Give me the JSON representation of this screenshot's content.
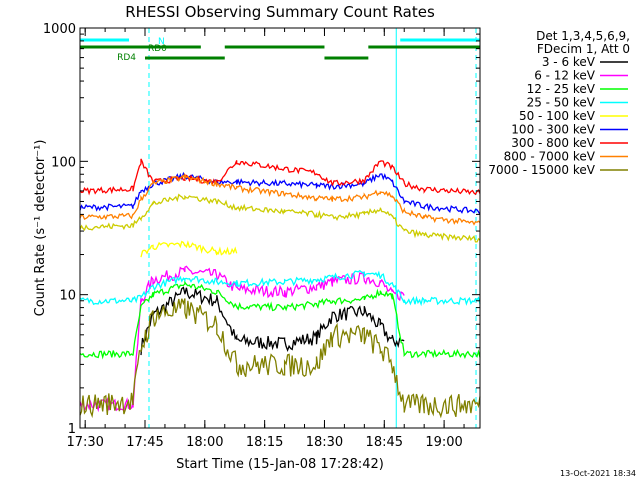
{
  "chart_data": {
    "type": "line",
    "title": "RHESSI Observing Summary Count Rates",
    "xlabel": "Start Time (15-Jan-08 17:28:42)",
    "ylabel": "Count Rate (s⁻¹ detector⁻¹)",
    "xlim": [
      "17:28:42",
      "19:09:00"
    ],
    "ylim": [
      1,
      1000
    ],
    "y_scale": "log",
    "grid": false,
    "x_ticks": [
      "17:30",
      "17:45",
      "18:00",
      "18:15",
      "18:30",
      "18:45",
      "19:00"
    ],
    "y_ticks": [
      "1",
      "10",
      "100",
      "1000"
    ],
    "legend_header": [
      "Det 1,3,4,5,6,9,",
      "FDecim 1, Att 0"
    ],
    "legend_position": "right",
    "footer_date": "13-Oct-2021 18:34",
    "x_breakpoints": [
      "17:28:42",
      "17:42",
      "17:44",
      "17:47",
      "17:55",
      "18:03",
      "18:08",
      "18:20",
      "18:28",
      "18:32",
      "18:40",
      "18:44",
      "18:47",
      "18:50",
      "18:55",
      "19:09"
    ],
    "series": [
      {
        "name": "3 - 6 keV",
        "color": "#000000",
        "values": [
          null,
          null,
          4.0,
          7.0,
          10.5,
          9.0,
          4.5,
          4.3,
          4.8,
          7.0,
          7.5,
          5.8,
          4.5,
          null,
          null,
          null
        ]
      },
      {
        "name": "6 - 12 keV",
        "color": "#ff00ff",
        "values": [
          1.5,
          1.5,
          9.0,
          13.0,
          15.0,
          14.0,
          11.0,
          10.5,
          11.5,
          12.5,
          13.5,
          12.5,
          10.0,
          null,
          null,
          null
        ]
      },
      {
        "name": "12 - 25 keV",
        "color": "#00ff00",
        "values": [
          3.6,
          3.6,
          8.0,
          10.0,
          12.0,
          10.5,
          8.2,
          8.0,
          8.5,
          9.0,
          9.2,
          10.5,
          9.8,
          3.6,
          3.6,
          3.6
        ]
      },
      {
        "name": "25 - 50 keV",
        "color": "#00ffff",
        "values": [
          9.0,
          9.0,
          9.5,
          11.5,
          13.5,
          12.5,
          12.2,
          12.5,
          13.0,
          13.5,
          14.5,
          14.0,
          12.0,
          9.0,
          9.0,
          9.0
        ]
      },
      {
        "name": "50 - 100 keV",
        "color": "#ffff00",
        "values": [
          null,
          null,
          20.0,
          23.0,
          24.0,
          21.0,
          null,
          null,
          null,
          null,
          null,
          null,
          null,
          null,
          null,
          null
        ]
      },
      {
        "name": "100 - 300 keV",
        "color": "#0000ff",
        "values": [
          45.0,
          46.0,
          60.0,
          68.0,
          78.0,
          70.0,
          70.0,
          68.0,
          66.0,
          65.0,
          68.0,
          80.0,
          70.0,
          50.0,
          46.0,
          42.0
        ]
      },
      {
        "name": "300 - 800 keV",
        "color": "#ff0000",
        "values": [
          60.0,
          62.0,
          100.0,
          70.0,
          75.0,
          70.0,
          100.0,
          88.0,
          82.0,
          68.0,
          72.0,
          100.0,
          90.0,
          68.0,
          62.0,
          58.0
        ]
      },
      {
        "name": "800 - 7000 keV",
        "color": "#ff8000",
        "values": [
          38.0,
          39.0,
          52.0,
          68.0,
          76.0,
          68.0,
          63.0,
          57.0,
          53.0,
          52.0,
          54.0,
          60.0,
          55.0,
          42.0,
          38.0,
          34.0
        ]
      },
      {
        "name": "7000 - 15000 keV",
        "color": "#808000",
        "values": [
          1.5,
          1.6,
          4.0,
          7.0,
          8.0,
          6.0,
          3.0,
          3.0,
          3.0,
          5.0,
          5.0,
          4.0,
          3.0,
          1.5,
          1.5,
          1.5
        ]
      },
      {
        "name": "",
        "color": "#cccc00",
        "values": [
          32.0,
          33.0,
          38.0,
          48.0,
          55.0,
          50.0,
          45.0,
          42.0,
          40.0,
          38.0,
          40.0,
          44.0,
          38.0,
          30.0,
          28.0,
          26.0
        ]
      }
    ],
    "status_bars": [
      {
        "label": "N",
        "color": "#00ffff",
        "segments": [
          [
            "17:28:42",
            "17:41"
          ],
          [
            "18:49",
            "19:09"
          ]
        ]
      },
      {
        "label": "RD0",
        "color": "#008000",
        "segments": [
          [
            "17:28:42",
            "17:59"
          ],
          [
            "18:05",
            "18:30"
          ],
          [
            "18:41",
            "19:09"
          ]
        ]
      },
      {
        "label": "RD4",
        "color": "#008000",
        "segments": [
          [
            "17:45",
            "18:05"
          ],
          [
            "18:30",
            "18:41"
          ]
        ]
      }
    ],
    "vertical_markers": [
      {
        "time": "17:28:42",
        "style": "solid",
        "color": "#00ffff"
      },
      {
        "time": "17:46",
        "style": "dashed",
        "color": "#00ffff"
      },
      {
        "time": "18:48",
        "style": "solid",
        "color": "#00ffff"
      },
      {
        "time": "19:08",
        "style": "dashed",
        "color": "#00ffff"
      }
    ]
  }
}
